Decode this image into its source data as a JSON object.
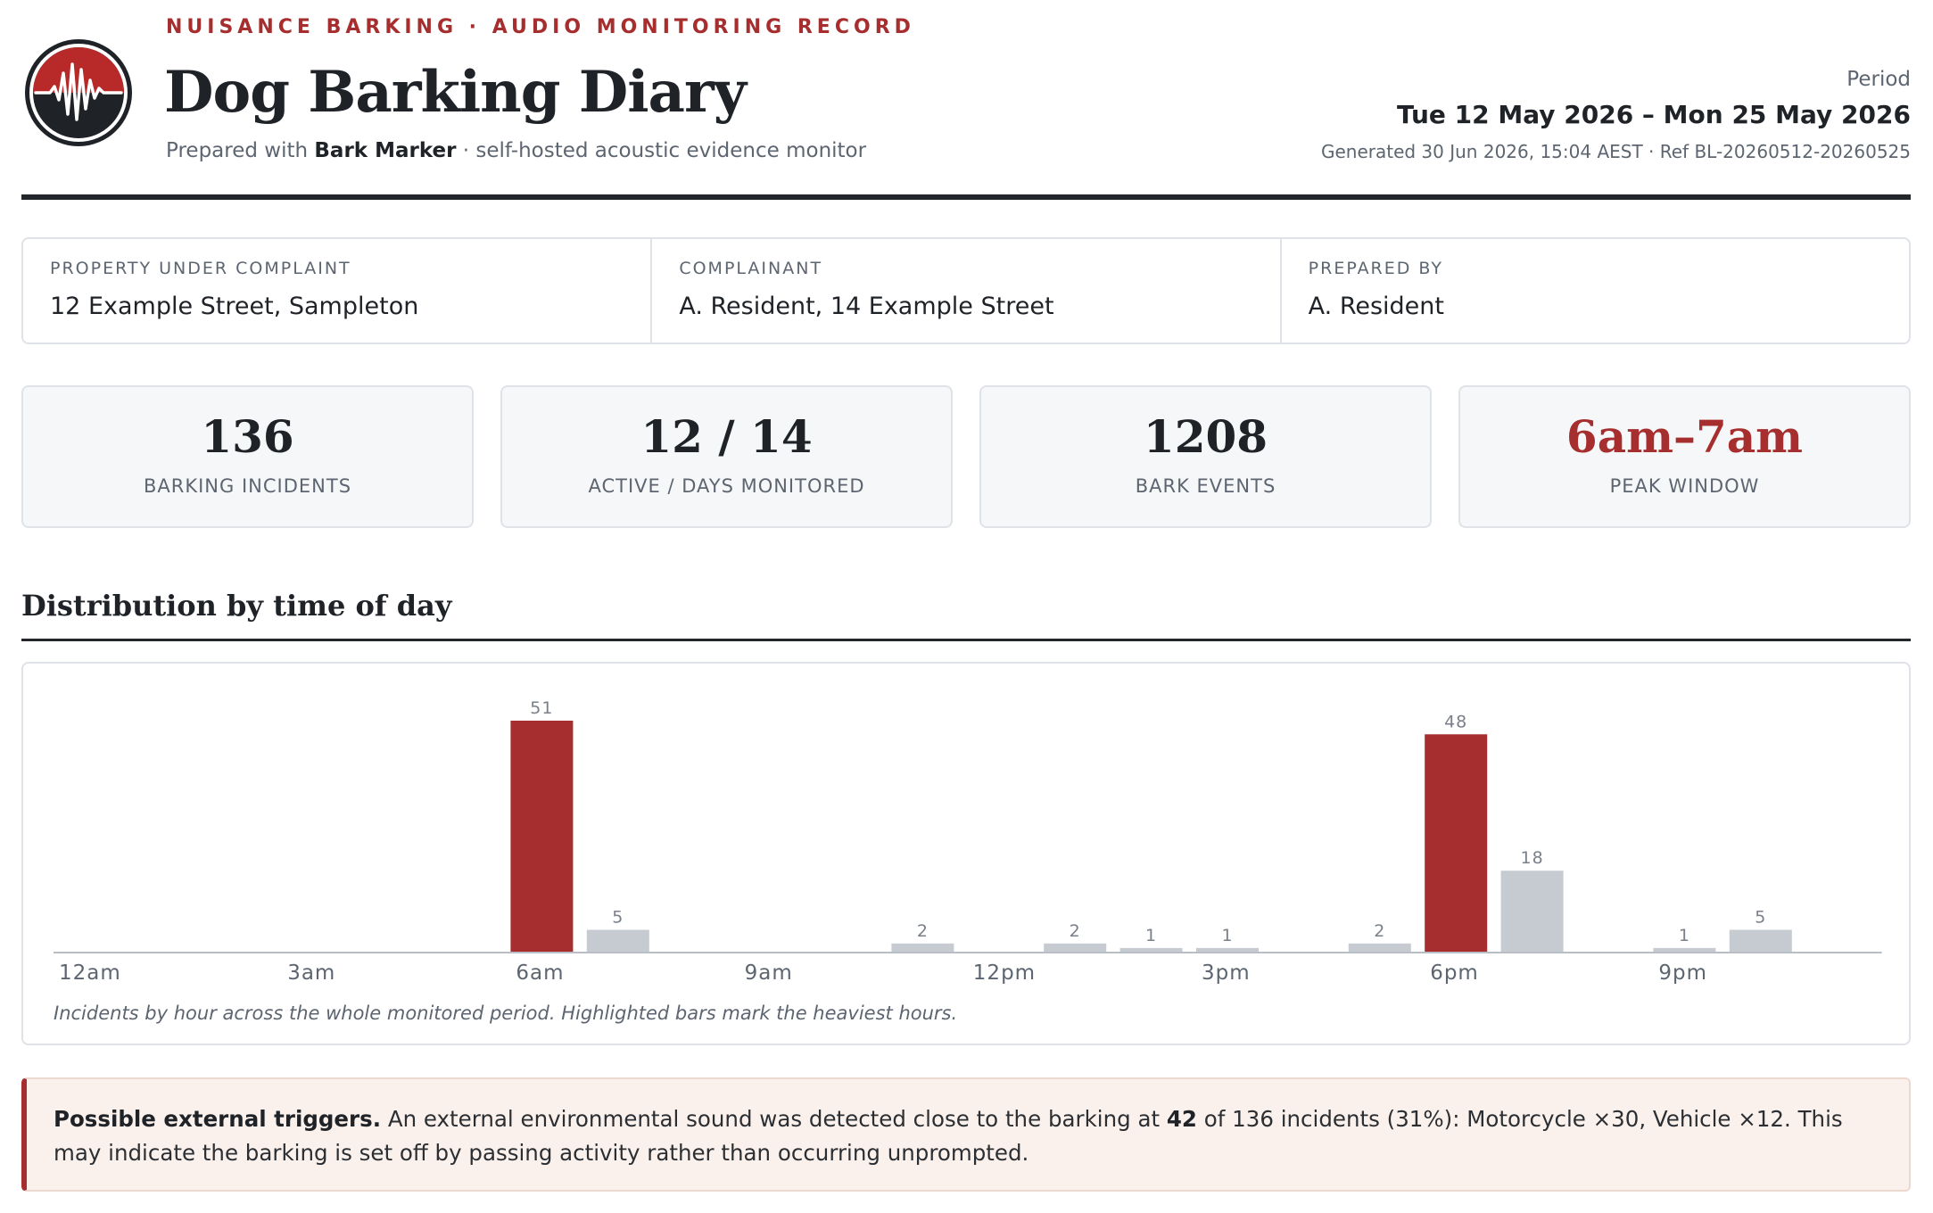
{
  "header": {
    "kicker": "NUISANCE BARKING · AUDIO MONITORING RECORD",
    "title": "Dog Barking Diary",
    "subtitle_prefix": "Prepared with ",
    "subtitle_brand": "Bark Marker",
    "subtitle_suffix": " · self-hosted acoustic evidence monitor",
    "period_label": "Period",
    "period_value": "Tue 12 May 2026 – Mon 25 May 2026",
    "generated": "Generated 30 Jun 2026, 15:04 AEST · Ref BL-20260512-20260525",
    "logo_icon": "waveform-icon"
  },
  "info": [
    {
      "label": "PROPERTY UNDER COMPLAINT",
      "value": "12 Example Street, Sampleton"
    },
    {
      "label": "COMPLAINANT",
      "value": "A. Resident, 14 Example Street"
    },
    {
      "label": "PREPARED BY",
      "value": "A. Resident"
    }
  ],
  "kpis": [
    {
      "value": "136",
      "label": "BARKING INCIDENTS"
    },
    {
      "value": "12 / 14",
      "label": "ACTIVE / DAYS MONITORED"
    },
    {
      "value": "1208",
      "label": "BARK EVENTS"
    },
    {
      "value": "6am–7am",
      "label": "PEAK WINDOW"
    }
  ],
  "section": {
    "title": "Distribution by time of day"
  },
  "chart_data": {
    "type": "bar",
    "x": [
      0,
      1,
      2,
      3,
      4,
      5,
      6,
      7,
      8,
      9,
      10,
      11,
      12,
      13,
      14,
      15,
      16,
      17,
      18,
      19,
      20,
      21,
      22,
      23
    ],
    "values": [
      0,
      0,
      0,
      0,
      0,
      0,
      51,
      5,
      0,
      0,
      0,
      2,
      0,
      2,
      1,
      1,
      0,
      2,
      48,
      18,
      0,
      1,
      5,
      0
    ],
    "highlighted": [
      6,
      18
    ],
    "tick_positions": [
      0,
      3,
      6,
      9,
      12,
      15,
      18,
      21
    ],
    "tick_labels": [
      "12am",
      "3am",
      "6am",
      "9am",
      "12pm",
      "3pm",
      "6pm",
      "9pm"
    ],
    "colors": {
      "highlight": "#a62e2e",
      "normal": "#c5cbd1",
      "axis": "#b9bec4",
      "label": "#7a8089"
    },
    "caption": "Incidents by hour across the whole monitored period. Highlighted bars mark the heaviest hours."
  },
  "note": {
    "heading": "Possible external triggers.",
    "text_a": " An external environmental sound was detected close to the barking at ",
    "count": "42",
    "text_b": " of 136 incidents (31%): Motorcycle ×30, Vehicle ×12. This may indicate the barking is set off by passing activity rather than occurring unprompted."
  },
  "colors": {
    "accent": "#a62e2e",
    "ink": "#1f2328",
    "muted": "#5d6570"
  }
}
